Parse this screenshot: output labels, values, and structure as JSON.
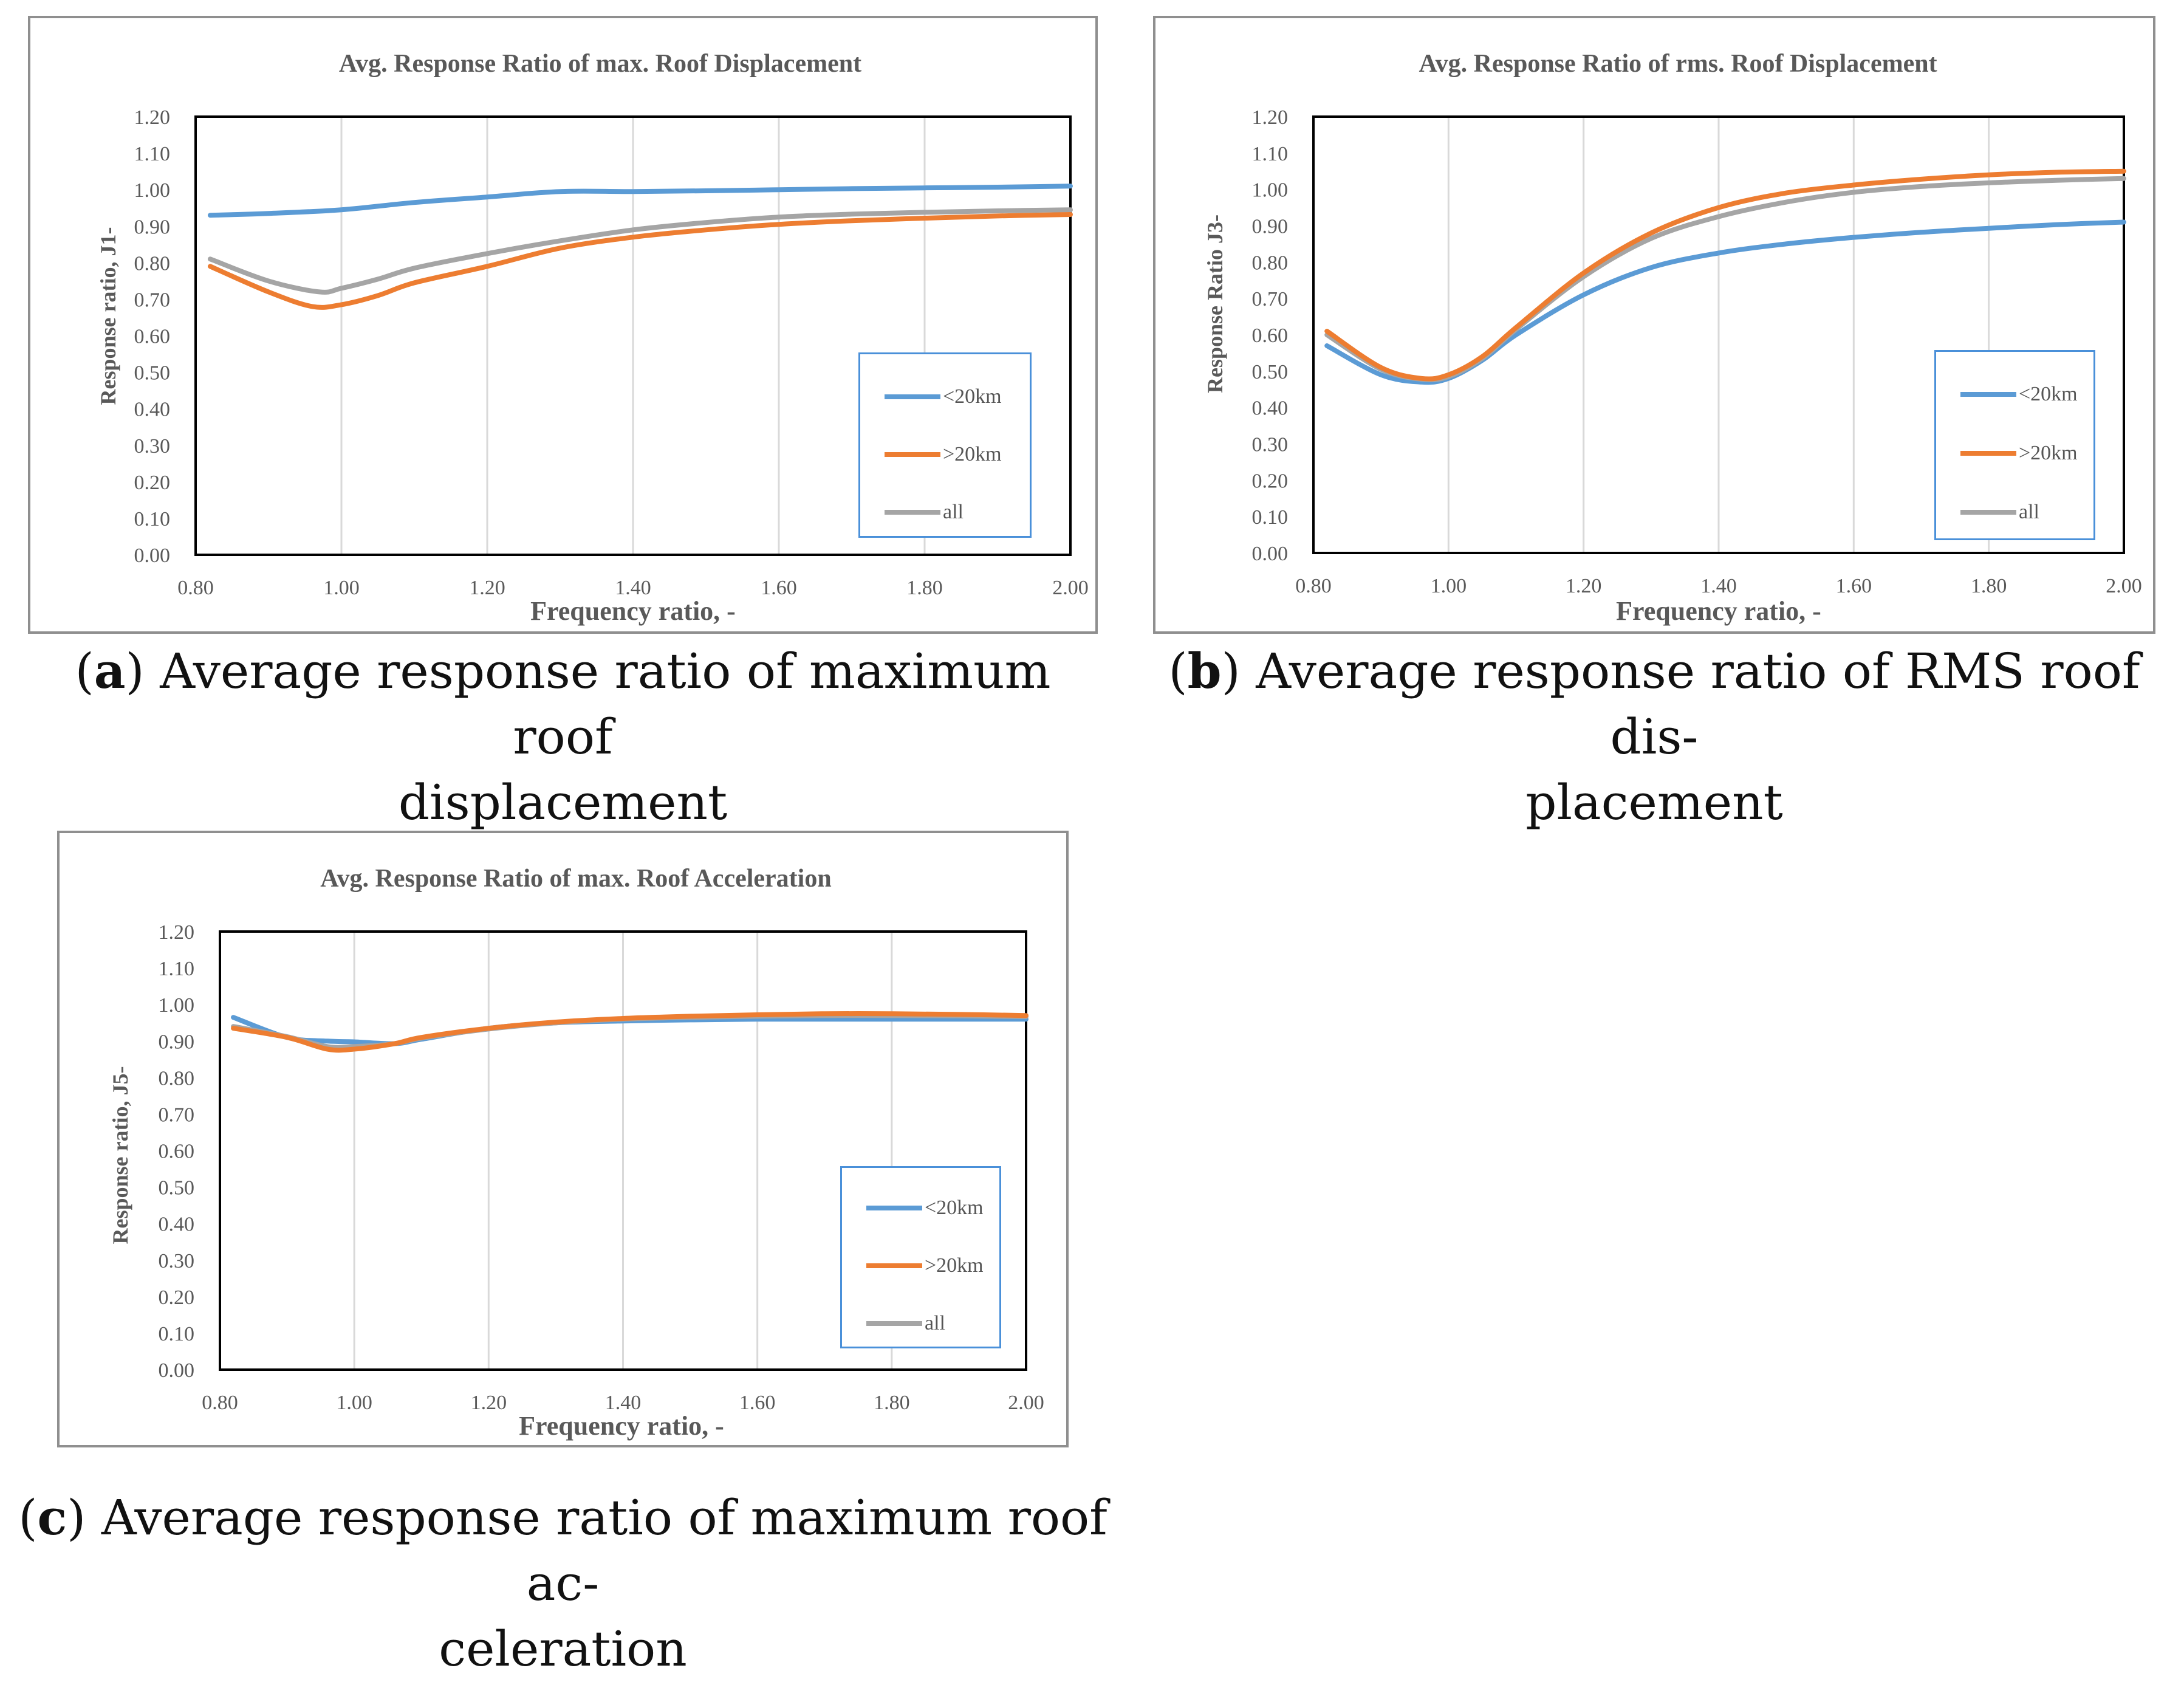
{
  "colors": {
    "lt20": "#5b9bd5",
    "gt20": "#ed7d31",
    "all": "#a5a5a5",
    "axis": "#000000",
    "grid": "#d9d9d9",
    "text": "#595959"
  },
  "chart_data": [
    {
      "id": "a",
      "type": "line",
      "title": "Avg. Response Ratio of max. Roof Displacement",
      "xlabel": "Frequency  ratio, -",
      "ylabel": "Response  ratio,  J1-",
      "xlim": [
        0.8,
        2.0
      ],
      "ylim": [
        0.0,
        1.2
      ],
      "xticks": [
        "0.80",
        "1.00",
        "1.20",
        "1.40",
        "1.60",
        "1.80",
        "2.00"
      ],
      "yticks": [
        "0.00",
        "0.10",
        "0.20",
        "0.30",
        "0.40",
        "0.50",
        "0.60",
        "0.70",
        "0.80",
        "0.90",
        "1.00",
        "1.10",
        "1.20"
      ],
      "grid": "vertical",
      "legend_position": "bottom-right",
      "series": [
        {
          "name": "<20km",
          "key": "lt20",
          "x": [
            0.82,
            0.9,
            1.0,
            1.1,
            1.2,
            1.3,
            1.4,
            1.5,
            1.6,
            1.7,
            1.8,
            1.9,
            2.0
          ],
          "y": [
            0.93,
            0.935,
            0.945,
            0.965,
            0.98,
            0.995,
            0.995,
            0.997,
            1.0,
            1.003,
            1.005,
            1.007,
            1.01
          ]
        },
        {
          "name": ">20km",
          "key": "gt20",
          "x": [
            0.82,
            0.9,
            0.96,
            1.0,
            1.05,
            1.1,
            1.2,
            1.3,
            1.4,
            1.5,
            1.6,
            1.7,
            1.8,
            1.9,
            2.0
          ],
          "y": [
            0.79,
            0.72,
            0.68,
            0.685,
            0.71,
            0.745,
            0.79,
            0.84,
            0.87,
            0.89,
            0.905,
            0.915,
            0.922,
            0.928,
            0.932
          ]
        },
        {
          "name": "all",
          "key": "all",
          "x": [
            0.82,
            0.9,
            0.97,
            1.0,
            1.05,
            1.1,
            1.2,
            1.3,
            1.4,
            1.5,
            1.6,
            1.7,
            1.8,
            1.9,
            2.0
          ],
          "y": [
            0.81,
            0.75,
            0.72,
            0.73,
            0.755,
            0.785,
            0.825,
            0.86,
            0.89,
            0.91,
            0.925,
            0.933,
            0.938,
            0.942,
            0.945
          ]
        }
      ]
    },
    {
      "id": "b",
      "type": "line",
      "title": "Avg. Response Ratio of rms. Roof Displacement",
      "xlabel": "Frequency  ratio, -",
      "ylabel": "Response Ratio J3-",
      "xlim": [
        0.8,
        2.0
      ],
      "ylim": [
        0.0,
        1.2
      ],
      "xticks": [
        "0.80",
        "1.00",
        "1.20",
        "1.40",
        "1.60",
        "1.80",
        "2.00"
      ],
      "yticks": [
        "0.00",
        "0.10",
        "0.20",
        "0.30",
        "0.40",
        "0.50",
        "0.60",
        "0.70",
        "0.80",
        "0.90",
        "1.00",
        "1.10",
        "1.20"
      ],
      "grid": "vertical",
      "legend_position": "bottom-right",
      "series": [
        {
          "name": "<20km",
          "key": "lt20",
          "x": [
            0.82,
            0.9,
            0.96,
            1.0,
            1.05,
            1.1,
            1.2,
            1.3,
            1.4,
            1.5,
            1.6,
            1.7,
            1.8,
            1.9,
            2.0
          ],
          "y": [
            0.57,
            0.49,
            0.47,
            0.48,
            0.53,
            0.6,
            0.71,
            0.785,
            0.825,
            0.85,
            0.868,
            0.882,
            0.893,
            0.903,
            0.91
          ]
        },
        {
          "name": ">20km",
          "key": "gt20",
          "x": [
            0.82,
            0.9,
            0.96,
            1.0,
            1.05,
            1.1,
            1.2,
            1.3,
            1.4,
            1.5,
            1.6,
            1.7,
            1.8,
            1.9,
            2.0
          ],
          "y": [
            0.61,
            0.51,
            0.48,
            0.49,
            0.54,
            0.62,
            0.77,
            0.88,
            0.95,
            0.99,
            1.012,
            1.028,
            1.04,
            1.047,
            1.05
          ]
        },
        {
          "name": "all",
          "key": "all",
          "x": [
            0.82,
            0.9,
            0.96,
            1.0,
            1.05,
            1.1,
            1.2,
            1.3,
            1.4,
            1.5,
            1.6,
            1.7,
            1.8,
            1.9,
            2.0
          ],
          "y": [
            0.6,
            0.505,
            0.478,
            0.485,
            0.535,
            0.615,
            0.76,
            0.865,
            0.925,
            0.965,
            0.992,
            1.008,
            1.018,
            1.025,
            1.03
          ]
        }
      ]
    },
    {
      "id": "c",
      "type": "line",
      "title": "Avg. Response Ratio of max. Roof Acceleration",
      "xlabel": "Frequency  ratio, -",
      "ylabel": "Response  ratio,  J5-",
      "xlim": [
        0.8,
        2.0
      ],
      "ylim": [
        0.0,
        1.2
      ],
      "xticks": [
        "0.80",
        "1.00",
        "1.20",
        "1.40",
        "1.60",
        "1.80",
        "2.00"
      ],
      "yticks": [
        "0.00",
        "0.10",
        "0.20",
        "0.30",
        "0.40",
        "0.50",
        "0.60",
        "0.70",
        "0.80",
        "0.90",
        "1.00",
        "1.10",
        "1.20"
      ],
      "grid": "vertical",
      "legend_position": "bottom-right",
      "series": [
        {
          "name": "<20km",
          "key": "lt20",
          "x": [
            0.82,
            0.9,
            0.96,
            1.0,
            1.06,
            1.1,
            1.2,
            1.3,
            1.4,
            1.5,
            1.6,
            1.7,
            1.8,
            1.9,
            2.0
          ],
          "y": [
            0.965,
            0.91,
            0.9,
            0.898,
            0.893,
            0.905,
            0.935,
            0.95,
            0.955,
            0.958,
            0.96,
            0.96,
            0.96,
            0.96,
            0.96
          ]
        },
        {
          "name": ">20km",
          "key": "gt20",
          "x": [
            0.82,
            0.9,
            0.96,
            1.0,
            1.06,
            1.1,
            1.2,
            1.3,
            1.4,
            1.5,
            1.6,
            1.7,
            1.8,
            1.9,
            2.0
          ],
          "y": [
            0.935,
            0.91,
            0.878,
            0.878,
            0.893,
            0.91,
            0.935,
            0.952,
            0.962,
            0.968,
            0.972,
            0.975,
            0.975,
            0.973,
            0.97
          ]
        },
        {
          "name": "all",
          "key": "all",
          "x": [
            0.82,
            0.9,
            0.96,
            1.0,
            1.06,
            1.1,
            1.2,
            1.3,
            1.4,
            1.5,
            1.6,
            1.7,
            1.8,
            1.9,
            2.0
          ],
          "y": [
            0.94,
            0.912,
            0.885,
            0.885,
            0.893,
            0.908,
            0.933,
            0.95,
            0.96,
            0.965,
            0.968,
            0.97,
            0.97,
            0.969,
            0.967
          ]
        }
      ]
    }
  ],
  "captions": [
    {
      "label": "a",
      "text_line1": ") Average response ratio of maximum roof",
      "text_line2": "displacement"
    },
    {
      "label": "b",
      "text_line1": ") Average response ratio of RMS roof dis-",
      "text_line2": "placement"
    },
    {
      "label": "c",
      "text_line1": ") Average response ratio of maximum roof ac-",
      "text_line2": "celeration"
    }
  ]
}
